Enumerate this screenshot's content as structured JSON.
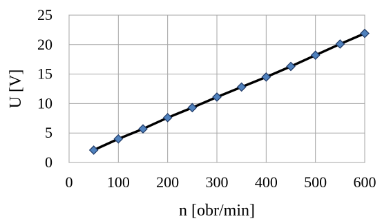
{
  "chart_data": {
    "type": "line",
    "title": "",
    "xlabel": "n [obr/min]",
    "ylabel": "U [V]",
    "xlim": [
      0,
      600
    ],
    "ylim": [
      0,
      25
    ],
    "xticks": [
      0,
      100,
      200,
      300,
      400,
      500,
      600
    ],
    "yticks": [
      0,
      5,
      10,
      15,
      20,
      25
    ],
    "xtick_labels": [
      "0",
      "100",
      "200",
      "300",
      "400",
      "500",
      "600"
    ],
    "ytick_labels": [
      "0",
      "5",
      "10",
      "15",
      "20",
      "25"
    ],
    "grid": true,
    "legend": "none",
    "series": [
      {
        "x": [
          50,
          100,
          150,
          200,
          250,
          300,
          350,
          400,
          450,
          500,
          550,
          600
        ],
        "y": [
          2.1,
          4.0,
          5.7,
          7.6,
          9.3,
          11.1,
          12.8,
          14.5,
          16.3,
          18.2,
          20.1,
          21.9
        ],
        "line_color": "#000000",
        "marker": "diamond",
        "marker_fill": "#4f81bd",
        "marker_stroke": "#1f3864"
      }
    ]
  }
}
